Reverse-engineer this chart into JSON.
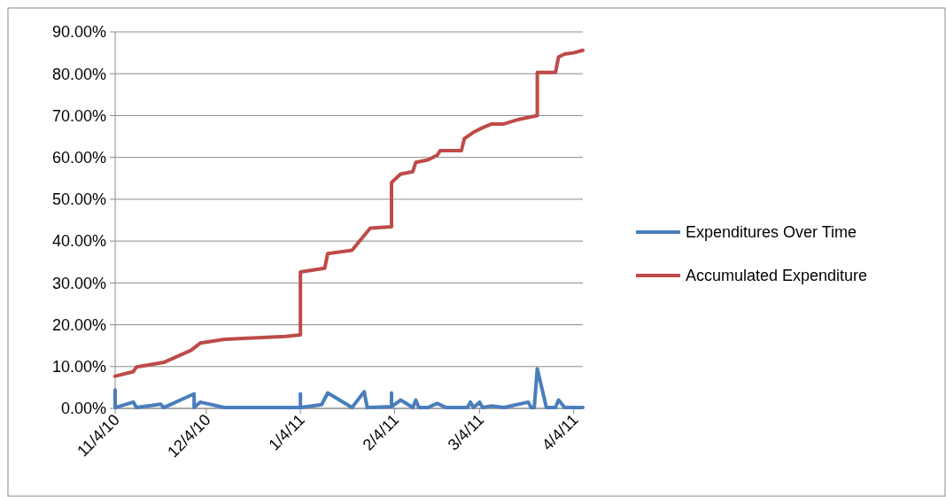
{
  "chart_data": {
    "type": "line",
    "xlim": [
      "2010-11-04",
      "2011-04-07"
    ],
    "xticks": [
      {
        "value": "2010-11-04",
        "label": "11/4/10"
      },
      {
        "value": "2010-12-04",
        "label": "12/4/10"
      },
      {
        "value": "2011-01-04",
        "label": "1/4/11"
      },
      {
        "value": "2011-02-04",
        "label": "2/4/11"
      },
      {
        "value": "2011-03-04",
        "label": "3/4/11"
      },
      {
        "value": "2011-04-04",
        "label": "4/4/11"
      }
    ],
    "ylim": [
      0,
      90
    ],
    "yticks": [
      {
        "value": 0,
        "label": "0.00%"
      },
      {
        "value": 10,
        "label": "10.00%"
      },
      {
        "value": 20,
        "label": "20.00%"
      },
      {
        "value": 30,
        "label": "30.00%"
      },
      {
        "value": 40,
        "label": "40.00%"
      },
      {
        "value": 50,
        "label": "50.00%"
      },
      {
        "value": 60,
        "label": "60.00%"
      },
      {
        "value": 70,
        "label": "70.00%"
      },
      {
        "value": 80,
        "label": "80.00%"
      },
      {
        "value": 90,
        "label": "90.00%"
      }
    ],
    "grid": "y",
    "legend": "right",
    "line_style": "solid",
    "marker": "none",
    "series": [
      {
        "name": "Expenditures Over Time",
        "color": "#4a7ebb",
        "x": [
          "2010-11-04",
          "2010-11-04",
          "2010-11-10",
          "2010-11-11",
          "2010-11-19",
          "2010-11-20",
          "2010-11-30",
          "2010-11-30",
          "2010-12-02",
          "2010-12-10",
          "2010-12-30",
          "2011-01-04",
          "2011-01-04",
          "2011-01-04",
          "2011-01-11",
          "2011-01-13",
          "2011-01-21",
          "2011-01-25",
          "2011-01-26",
          "2011-02-03",
          "2011-02-03",
          "2011-02-03",
          "2011-02-06",
          "2011-02-10",
          "2011-02-11",
          "2011-02-12",
          "2011-02-15",
          "2011-02-18",
          "2011-02-21",
          "2011-02-28",
          "2011-03-01",
          "2011-03-02",
          "2011-03-04",
          "2011-03-05",
          "2011-03-08",
          "2011-03-12",
          "2011-03-20",
          "2011-03-21",
          "2011-03-22",
          "2011-03-23",
          "2011-03-26",
          "2011-03-29",
          "2011-03-30",
          "2011-04-01",
          "2011-04-07"
        ],
        "values": [
          4.4,
          0.2,
          1.5,
          0.2,
          1.0,
          0.2,
          3.5,
          0.2,
          1.5,
          0.2,
          0.2,
          0.2,
          3.5,
          0.2,
          0.9,
          3.7,
          0.2,
          4.0,
          0.2,
          0.4,
          3.7,
          0.4,
          2.0,
          0.2,
          2.0,
          0.2,
          0.2,
          1.2,
          0.2,
          0.2,
          1.5,
          0.2,
          1.5,
          0.2,
          0.6,
          0.2,
          1.5,
          0.2,
          0.2,
          9.5,
          0.2,
          0.2,
          2.0,
          0.2,
          0.2
        ]
      },
      {
        "name": "Accumulated Expenditure",
        "color": "#be4b48",
        "x": [
          "2010-11-04",
          "2010-11-10",
          "2010-11-11",
          "2010-11-20",
          "2010-11-29",
          "2010-12-02",
          "2010-12-10",
          "2010-12-30",
          "2011-01-04",
          "2011-01-04",
          "2011-01-12",
          "2011-01-13",
          "2011-01-21",
          "2011-01-27",
          "2011-02-03",
          "2011-02-03",
          "2011-02-06",
          "2011-02-10",
          "2011-02-11",
          "2011-02-15",
          "2011-02-18",
          "2011-02-19",
          "2011-02-26",
          "2011-02-27",
          "2011-03-02",
          "2011-03-05",
          "2011-03-08",
          "2011-03-12",
          "2011-03-17",
          "2011-03-23",
          "2011-03-23",
          "2011-03-29",
          "2011-03-30",
          "2011-04-01",
          "2011-04-04",
          "2011-04-07"
        ],
        "values": [
          7.7,
          8.8,
          9.9,
          11.0,
          13.9,
          15.6,
          16.5,
          17.2,
          17.6,
          32.6,
          33.5,
          37.0,
          37.8,
          43.1,
          43.4,
          54.0,
          56.0,
          56.6,
          58.8,
          59.4,
          60.5,
          61.6,
          61.6,
          64.5,
          66.0,
          67.1,
          68.0,
          68.0,
          69.1,
          70.0,
          80.3,
          80.3,
          84.0,
          84.7,
          85.0,
          85.6
        ]
      }
    ]
  }
}
